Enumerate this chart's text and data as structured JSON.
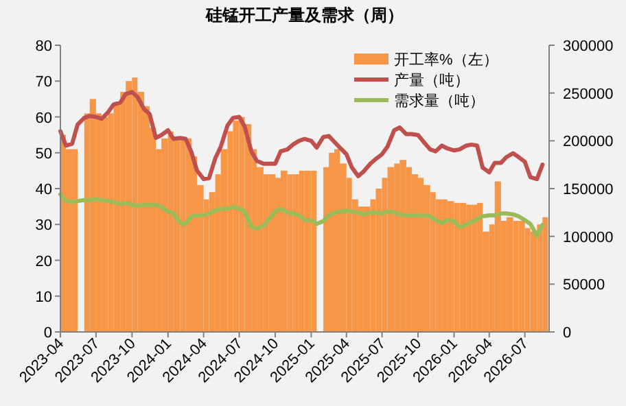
{
  "chart_data": {
    "type": "bar",
    "title": "硅锰开工产量及需求（周）",
    "x": [
      "2023-04-01",
      "2023-04-15",
      "2023-05-01",
      "2023-05-15",
      "2023-06-01",
      "2023-06-15",
      "2023-07-01",
      "2023-07-15",
      "2023-08-01",
      "2023-08-15",
      "2023-09-01",
      "2023-09-15",
      "2023-10-01",
      "2023-10-15",
      "2023-11-01",
      "2023-11-15",
      "2023-12-01",
      "2023-12-15",
      "2024-01-01",
      "2024-01-15",
      "2024-02-01",
      "2024-02-15",
      "2024-03-01",
      "2024-03-15",
      "2024-04-01",
      "2024-04-15",
      "2024-05-01",
      "2024-05-15",
      "2024-06-01",
      "2024-06-15",
      "2024-07-01",
      "2024-07-15",
      "2024-08-01",
      "2024-08-15",
      "2024-09-01",
      "2024-09-15",
      "2024-10-01",
      "2024-10-15",
      "2024-11-01",
      "2024-11-15",
      "2024-12-01",
      "2024-12-15",
      "2025-01-01",
      "2025-01-15",
      "2025-02-01",
      "2025-02-15",
      "2025-03-01",
      "2025-03-15",
      "2025-04-01",
      "2025-04-15",
      "2025-05-01",
      "2025-05-15",
      "2025-06-01",
      "2025-06-15",
      "2025-07-01",
      "2025-07-15",
      "2025-08-01",
      "2025-08-15",
      "2025-09-01",
      "2025-09-15",
      "2025-10-01",
      "2025-10-15",
      "2025-11-01",
      "2025-11-15",
      "2025-12-01",
      "2025-12-15",
      "2026-01-01",
      "2026-01-15",
      "2026-02-01",
      "2026-02-15",
      "2026-03-01",
      "2026-03-15",
      "2026-04-01",
      "2026-04-15",
      "2026-05-01",
      "2026-05-15",
      "2026-06-01",
      "2026-06-15",
      "2026-07-01",
      "2026-07-15",
      "2026-08-01",
      "2026-08-15"
    ],
    "series": [
      {
        "name": "开工率%（左）",
        "color": "#f79646",
        "values": [
          55,
          51,
          51,
          null,
          61,
          65,
          61,
          60,
          61,
          64,
          67,
          70,
          71,
          67,
          63,
          57,
          51,
          54,
          56,
          54,
          54,
          54,
          49,
          41,
          37,
          39,
          44,
          51,
          56,
          59,
          60,
          58,
          51,
          46,
          44,
          44,
          43,
          45,
          44,
          44,
          45,
          45,
          45,
          null,
          46,
          50,
          51,
          47,
          43,
          37,
          35,
          35,
          37,
          40,
          43,
          46,
          47,
          48,
          46,
          44,
          43,
          41,
          39,
          37,
          37,
          36.5,
          36,
          36,
          35.5,
          35.5,
          36,
          28,
          30,
          42,
          31,
          32,
          31,
          31,
          29,
          28,
          30,
          32
        ]
      },
      {
        "name": "产量（吨）",
        "type": "line",
        "axis": "y2",
        "color": "#c0504d",
        "values": [
          210000,
          195000,
          197000,
          217000,
          224000,
          226000,
          225000,
          223000,
          230000,
          238000,
          240000,
          249000,
          251000,
          246000,
          233000,
          228000,
          203000,
          206000,
          211000,
          202000,
          203000,
          202000,
          188000,
          169000,
          160000,
          161000,
          182000,
          194000,
          216000,
          224000,
          225000,
          215000,
          189000,
          179000,
          176000,
          176000,
          176000,
          189000,
          191000,
          196000,
          200000,
          202000,
          200000,
          193000,
          204000,
          205000,
          199000,
          193000,
          186000,
          172000,
          163000,
          168000,
          176000,
          181000,
          186000,
          194000,
          211000,
          214000,
          207000,
          207000,
          206000,
          199000,
          191000,
          189000,
          195000,
          192000,
          190000,
          191000,
          195000,
          196000,
          195000,
          172000,
          167000,
          177000,
          177000,
          183000,
          187000,
          183000,
          178000,
          162000,
          160000,
          175000
        ]
      },
      {
        "name": "需求量（吨）",
        "type": "line",
        "axis": "y2",
        "color": "#9bbb59",
        "values": [
          144000,
          137000,
          136000,
          137000,
          138000,
          138000,
          139000,
          138000,
          137000,
          136000,
          134000,
          135000,
          133000,
          132000,
          133000,
          133000,
          133000,
          131000,
          126000,
          124000,
          114000,
          113000,
          121000,
          122000,
          122000,
          124000,
          127000,
          129000,
          129000,
          131000,
          129000,
          126000,
          110000,
          108000,
          111000,
          118000,
          126000,
          129000,
          125000,
          124000,
          122000,
          117000,
          117000,
          113000,
          116000,
          122000,
          125000,
          126000,
          127000,
          126000,
          125000,
          123000,
          125000,
          125000,
          124000,
          126000,
          125000,
          123000,
          122000,
          122000,
          122000,
          122000,
          121000,
          117000,
          114000,
          117000,
          116000,
          110000,
          112000,
          115000,
          118000,
          121000,
          122000,
          122000,
          124000,
          124000,
          123000,
          121000,
          117000,
          113000,
          101000,
          112000
        ]
      }
    ],
    "xlim": [
      "2023-04-01",
      "2026-09-01"
    ],
    "xticks": [
      "2023-04",
      "2023-07",
      "2023-10",
      "2024-01",
      "2024-04",
      "2024-07",
      "2024-10",
      "2025-01",
      "2025-04",
      "2025-07",
      "2025-10",
      "2026-01",
      "2026-04",
      "2026-07"
    ],
    "ylim": [
      0,
      80
    ],
    "yticks": [
      0,
      10,
      20,
      30,
      40,
      50,
      60,
      70,
      80
    ],
    "y2lim": [
      0,
      300000
    ],
    "y2ticks": [
      0,
      50000,
      100000,
      150000,
      200000,
      250000,
      300000
    ],
    "grid": false,
    "legend": "top right"
  }
}
